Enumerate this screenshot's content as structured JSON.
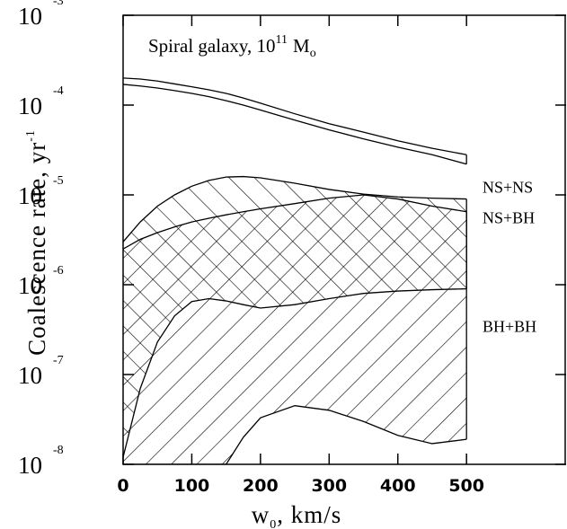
{
  "chart_data": {
    "type": "band",
    "log_y": true,
    "annotation": {
      "text": "Spiral galaxy, 10",
      "sup": "11",
      "unit": "M",
      "sub": "o"
    },
    "x_label": {
      "text": "w",
      "sub": "0",
      "rest": ", km/s"
    },
    "y_label": {
      "text": "Coalescence rate, yr",
      "sup": "-1"
    },
    "xlim": [
      0,
      645
    ],
    "ylim": [
      1e-08,
      0.001
    ],
    "xticks": [
      0,
      100,
      200,
      300,
      400,
      500
    ],
    "yticks": [
      {
        "value": 1e-08,
        "label": "10",
        "exponent": "-8"
      },
      {
        "value": 1e-07,
        "label": "10",
        "exponent": "-7"
      },
      {
        "value": 1e-06,
        "label": "10",
        "exponent": "-6"
      },
      {
        "value": 1e-05,
        "label": "10",
        "exponent": "-5"
      },
      {
        "value": 0.0001,
        "label": "10",
        "exponent": "-4"
      },
      {
        "value": 0.001,
        "label": "10",
        "exponent": "-3"
      }
    ],
    "x": [
      0,
      25,
      50,
      75,
      100,
      125,
      150,
      175,
      200,
      250,
      300,
      350,
      400,
      450,
      500
    ],
    "series": [
      {
        "name": "NS+NS",
        "hatch": "none",
        "color": "#000000",
        "upper": [
          0.0002,
          0.000195,
          0.000185,
          0.000172,
          0.00016,
          0.000148,
          0.000135,
          0.00012,
          0.000105,
          8e-05,
          6.2e-05,
          5e-05,
          4e-05,
          3.3e-05,
          2.8e-05
        ],
        "lower": [
          0.00017,
          0.000163,
          0.000155,
          0.000145,
          0.000135,
          0.000124,
          0.000112,
          0.0001,
          8.8e-05,
          6.8e-05,
          5.3e-05,
          4.2e-05,
          3.4e-05,
          2.8e-05,
          2.2e-05
        ]
      },
      {
        "name": "NS+BH",
        "hatch": "backslash",
        "color": "#000000",
        "upper": [
          3e-06,
          5e-06,
          7.5e-06,
          1e-05,
          1.25e-05,
          1.45e-05,
          1.58e-05,
          1.6e-05,
          1.55e-05,
          1.35e-05,
          1.15e-05,
          1.02e-05,
          9.5e-06,
          9.2e-06,
          9e-06
        ],
        "lower": [
          1.2e-08,
          7e-08,
          2.3e-07,
          4.5e-07,
          6.5e-07,
          7e-07,
          6.6e-07,
          6e-07,
          5.5e-07,
          6e-07,
          7e-07,
          8e-07,
          8.5e-07,
          8.8e-07,
          9e-07
        ]
      },
      {
        "name": "BH+BH",
        "hatch": "slash",
        "color": "#000000",
        "upper": [
          2.5e-06,
          3.2e-06,
          3.8e-06,
          4.4e-06,
          5e-06,
          5.5e-06,
          6e-06,
          6.5e-06,
          7e-06,
          8e-06,
          9.2e-06,
          1e-05,
          9e-06,
          7.5e-06,
          6.5e-06
        ],
        "lower": [
          1e-08,
          1e-08,
          1e-08,
          1e-08,
          1e-08,
          1e-08,
          1e-08,
          2e-08,
          3.3e-08,
          4.5e-08,
          4e-08,
          3e-08,
          2.1e-08,
          1.7e-08,
          1.9e-08
        ]
      }
    ]
  }
}
